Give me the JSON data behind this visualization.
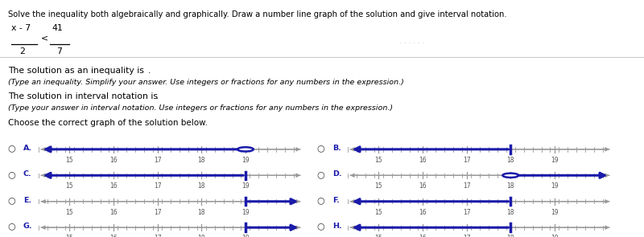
{
  "title_text": "Solve the inequality both algebraically and graphically. Draw a number line graph of the solution and give interval notation.",
  "frac_num": "x - 7",
  "frac_den": "2",
  "rhs_num": "41",
  "rhs_den": "7",
  "ineq_symbol": "<",
  "solution_label": "The solution as an inequality is",
  "interval_label": "The solution in interval notation is",
  "hint1": "(Type an inequality. Simplify your answer. Use integers or fractions for any numbers in the expression.)",
  "hint2": "(Type your answer in interval notation. Use integers or fractions for any numbers in the expression.)",
  "choose_label": "Choose the correct graph of the solution below.",
  "bg_color": "#ffffff",
  "text_color": "#000000",
  "hint_color": "#000000",
  "nl_color": "#1a1aaa",
  "axis_color": "#999999",
  "tick_color": "#999999",
  "tick_label_color": "#555555",
  "radio_color": "#333333",
  "option_label_color": "#1a1aaa",
  "box_color": "#aaaaaa",
  "scrollbar_color": "#cccccc",
  "options": [
    {
      "label": "A",
      "boundary": 19.0,
      "open": true,
      "direction": "left"
    },
    {
      "label": "B",
      "boundary": 18.0,
      "open": false,
      "direction": "left"
    },
    {
      "label": "C",
      "boundary": 19.0,
      "open": false,
      "direction": "left"
    },
    {
      "label": "D",
      "boundary": 18.0,
      "open": true,
      "direction": "right"
    },
    {
      "label": "E",
      "boundary": 19.0,
      "open": false,
      "direction": "right"
    },
    {
      "label": "F",
      "boundary": 18.0,
      "open": false,
      "direction": "left"
    },
    {
      "label": "G",
      "boundary": 19.0,
      "open": false,
      "direction": "right"
    },
    {
      "label": "H",
      "boundary": 18.0,
      "open": false,
      "direction": "left"
    }
  ],
  "xmin": 14.3,
  "xmax": 20.3,
  "ticks": [
    15,
    16,
    17,
    18,
    19
  ],
  "minor_step": 0.2
}
